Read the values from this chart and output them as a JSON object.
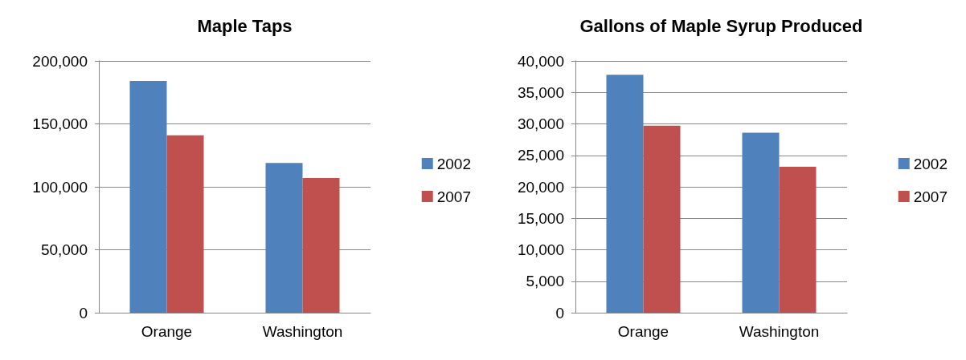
{
  "chart_data": [
    {
      "type": "bar",
      "title": "Maple Taps",
      "categories": [
        "Orange",
        "Washington"
      ],
      "series": [
        {
          "name": "2002",
          "color": "#4f81bd",
          "values": [
            184000,
            119000
          ]
        },
        {
          "name": "2007",
          "color": "#c0504d",
          "values": [
            141000,
            107000
          ]
        }
      ],
      "ylim": [
        0,
        200000
      ],
      "yticks": [
        {
          "value": 0,
          "label": "0"
        },
        {
          "value": 50000,
          "label": "50,000"
        },
        {
          "value": 100000,
          "label": "100,000"
        },
        {
          "value": 150000,
          "label": "150,000"
        },
        {
          "value": 200000,
          "label": "200,000"
        }
      ],
      "grid": "y",
      "legend": "right"
    },
    {
      "type": "bar",
      "title": "Gallons of Maple Syrup Produced",
      "categories": [
        "Orange",
        "Washington"
      ],
      "series": [
        {
          "name": "2002",
          "color": "#4f81bd",
          "values": [
            37800,
            28600
          ]
        },
        {
          "name": "2007",
          "color": "#c0504d",
          "values": [
            29700,
            23200
          ]
        }
      ],
      "ylim": [
        0,
        40000
      ],
      "yticks": [
        {
          "value": 0,
          "label": "0"
        },
        {
          "value": 5000,
          "label": "5,000"
        },
        {
          "value": 10000,
          "label": "10,000"
        },
        {
          "value": 15000,
          "label": "15,000"
        },
        {
          "value": 20000,
          "label": "20,000"
        },
        {
          "value": 25000,
          "label": "25,000"
        },
        {
          "value": 30000,
          "label": "30,000"
        },
        {
          "value": 35000,
          "label": "35,000"
        },
        {
          "value": 40000,
          "label": "40,000"
        }
      ],
      "grid": "y",
      "legend": "right"
    }
  ]
}
